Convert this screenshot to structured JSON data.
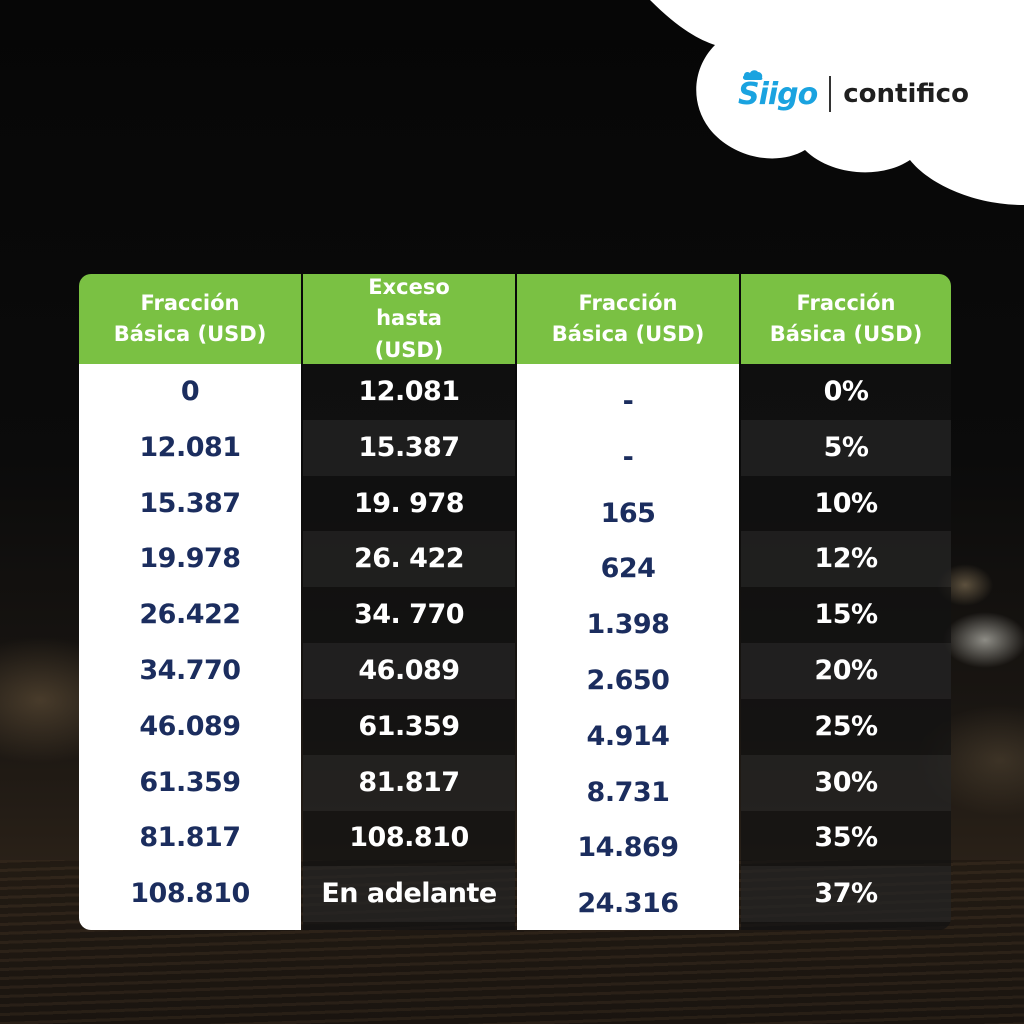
{
  "brand": {
    "siigo": "Siigo",
    "contifico": "contifico",
    "accent_green": "#7ac143",
    "siigo_blue": "#1aa3e0",
    "value_navy": "#1b2d5e"
  },
  "table": {
    "headers": [
      "Fracción Básica (USD)",
      "Exceso hasta (USD)",
      "Fracción Básica (USD)",
      "Fracción Básica (USD)"
    ],
    "rows": [
      [
        "0",
        "12.081",
        "-",
        "0%"
      ],
      [
        "12.081",
        "15.387",
        "-",
        "5%"
      ],
      [
        "15.387",
        "19. 978",
        "165",
        "10%"
      ],
      [
        "19.978",
        "26. 422",
        "624",
        "12%"
      ],
      [
        "26.422",
        "34. 770",
        "1.398",
        "15%"
      ],
      [
        "34.770",
        "46.089",
        "2.650",
        "20%"
      ],
      [
        "46.089",
        "61.359",
        "4.914",
        "25%"
      ],
      [
        "61.359",
        "81.817",
        "8.731",
        "30%"
      ],
      [
        "81.817",
        "108.810",
        "14.869",
        "35%"
      ],
      [
        "108.810",
        "En adelante",
        "24.316",
        "37%"
      ]
    ]
  }
}
